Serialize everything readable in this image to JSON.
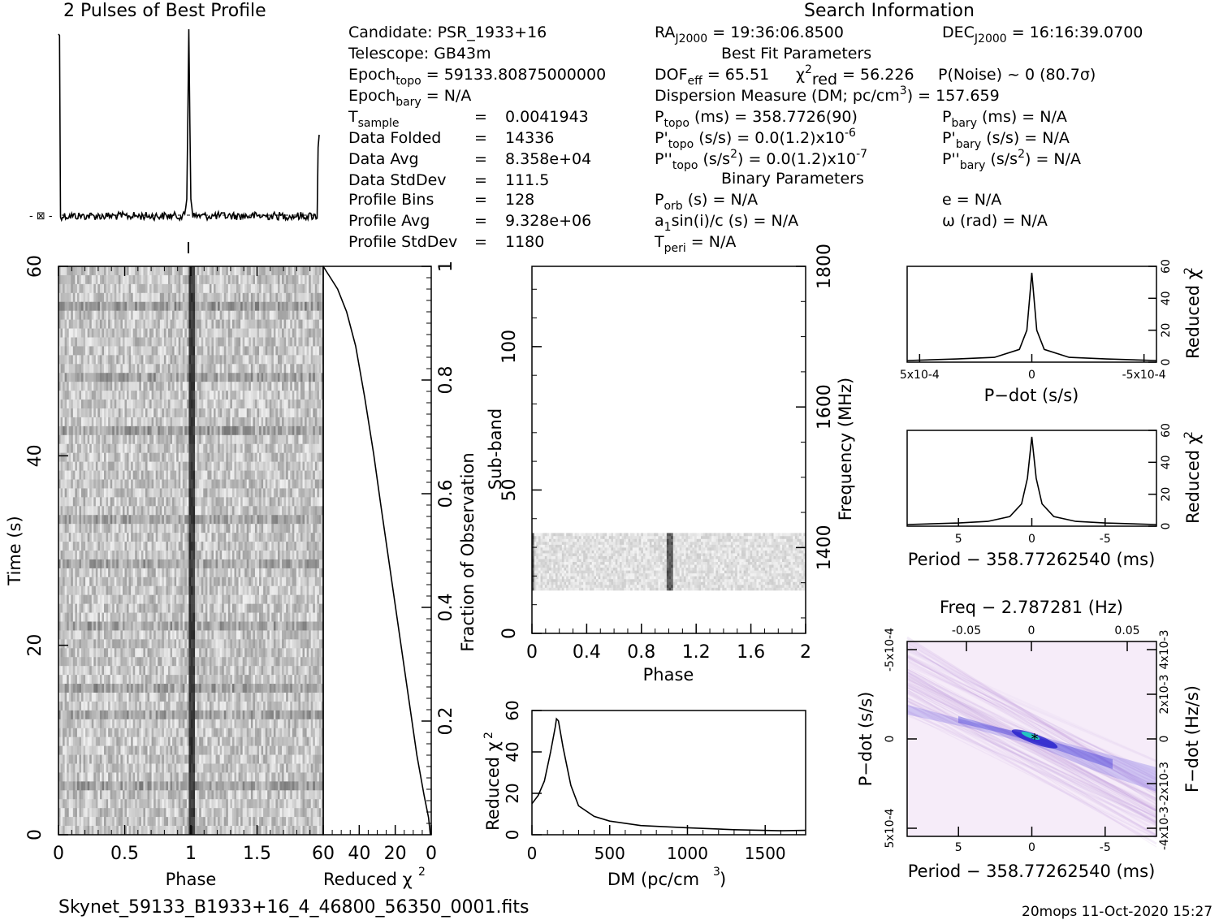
{
  "titles": {
    "profile": "2 Pulses of Best Profile",
    "search": "Search Information",
    "best_fit": "Best Fit Parameters",
    "binary": "Binary Parameters"
  },
  "info_left": [
    {
      "label": "Candidate:  PSR_1933+16"
    },
    {
      "label": "Telescope:  GB43m"
    },
    {
      "label": "Epoch",
      "sub": "topo",
      "rest": " = 59133.80875000000"
    },
    {
      "label": "Epoch",
      "sub": "bary",
      "rest": " = N/A"
    },
    {
      "label": "T",
      "sub": "sample",
      "eq": "=",
      "val": "0.0041943"
    },
    {
      "label": "Data Folded",
      "eq": "=",
      "val": "14336"
    },
    {
      "label": "Data Avg",
      "eq": "=",
      "val": "8.358e+04"
    },
    {
      "label": "Data StdDev",
      "eq": "=",
      "val": "111.5"
    },
    {
      "label": "Profile Bins",
      "eq": "=",
      "val": "128"
    },
    {
      "label": "Profile Avg",
      "eq": "=",
      "val": "9.328e+06"
    },
    {
      "label": "Profile StdDev",
      "eq": "=",
      "val": "1180"
    }
  ],
  "info_right": {
    "ra": {
      "label": "RA",
      "sub": "J2000",
      "rest": " = 19:36:06.8500"
    },
    "dec": {
      "label": "DEC",
      "sub": "J2000",
      "rest": " = 16:16:39.0700"
    },
    "dof": "DOF",
    "dof_sub": "eff",
    "dof_rest": " = 65.51",
    "chi": "χ",
    "chi_sup": "2",
    "chi_sub": "red",
    "chi_rest": " = 56.226",
    "noise": "P(Noise) ~ 0   (80.7σ)",
    "dm": "Dispersion Measure (DM; pc/cm",
    "dm_sup": "3",
    "dm_rest": ") = 157.659",
    "ptopo": {
      "label": "P",
      "sub": "topo",
      "rest": " (ms) =  358.7726(90)"
    },
    "pbary": {
      "label": "P",
      "sub": "bary",
      "rest": " (ms) = N/A"
    },
    "pdtopo": {
      "label": "P'",
      "sub": "topo",
      "rest": " (s/s) = 0.0(1.2)x10",
      "sup": "-6"
    },
    "pdbary": {
      "label": "P'",
      "sub": "bary",
      "rest": " (s/s) = N/A"
    },
    "pddtopo": {
      "label": "P''",
      "sub": "topo",
      "rest": " (s/s",
      "sup": "2",
      "rest2": ") = 0.0(1.2)x10",
      "sup2": "-7"
    },
    "pddbary": {
      "label": "P''",
      "sub": "bary",
      "rest": " (s/s",
      "sup": "2",
      "rest2": ") = N/A"
    },
    "porb": {
      "label": "P",
      "sub": "orb",
      "rest": " (s) = N/A"
    },
    "ecc": "e = N/A",
    "a1": {
      "label": "a",
      "sub": "1",
      "rest": "sin(i)/c (s) = N/A"
    },
    "omega": "ω (rad) = N/A",
    "tperi": {
      "label": "T",
      "sub": "peri",
      "rest": " = N/A"
    }
  },
  "footer": {
    "filename": "Skynet_59133_B1933+16_4_46800_56350_0001.fits",
    "stamp": "20mops 11-Oct-2020 15:27"
  },
  "chart_data": [
    {
      "type": "line",
      "title": "2 Pulses of Best Profile",
      "x": "Phase",
      "xlim": [
        0,
        2
      ],
      "peaks_at_phase": [
        0.0,
        1.0,
        2.0
      ],
      "note_values": "noise baseline with sharp pulse at phase 1 and profile wrap at 0 and 2"
    },
    {
      "type": "heatmap",
      "title": "",
      "xlabel": "Phase",
      "ylabel": "Time (s)",
      "xlim": [
        0,
        2
      ],
      "ylim": [
        0,
        60
      ],
      "xticks": [
        "0",
        "0.5",
        "1",
        "1.5"
      ],
      "yticks": [
        "0",
        "20",
        "40",
        "60"
      ]
    },
    {
      "type": "line",
      "xlabel": "Reduced χ2",
      "ylabel": "Fraction of Observation",
      "xlim": [
        60,
        0
      ],
      "ylim": [
        0,
        1
      ],
      "xticks": [
        "60",
        "40",
        "20",
        "0"
      ],
      "yticks": [
        "0.2",
        "0.4",
        "0.6",
        "0.8",
        "1"
      ],
      "points": [
        [
          0.5,
          0.0
        ],
        [
          1.5,
          0.03
        ],
        [
          4,
          0.07
        ],
        [
          8,
          0.14
        ],
        [
          13,
          0.25
        ],
        [
          18,
          0.36
        ],
        [
          23,
          0.47
        ],
        [
          28,
          0.58
        ],
        [
          32,
          0.67
        ],
        [
          37,
          0.77
        ],
        [
          42,
          0.86
        ],
        [
          47,
          0.92
        ],
        [
          52,
          0.96
        ],
        [
          56,
          0.98
        ],
        [
          58,
          0.99
        ],
        [
          60,
          1.0
        ]
      ]
    },
    {
      "type": "heatmap",
      "xlabel": "Phase",
      "ylabel": "Sub-band",
      "right_label": "Frequency (MHz)",
      "xlim": [
        0,
        2
      ],
      "ylim": [
        0,
        128
      ],
      "xticks": [
        "0",
        "0.4",
        "0.8",
        "1.2",
        "1.6",
        "2"
      ],
      "yticks": [
        "0",
        "50",
        "100"
      ],
      "right_ticks": [
        "1400",
        "1600",
        "1800"
      ],
      "data_band_subbands": [
        15,
        35
      ]
    },
    {
      "type": "line",
      "xlabel": "DM (pc/cm3)",
      "ylabel": "Reduced χ2",
      "xlim": [
        0,
        1760
      ],
      "ylim": [
        0,
        60
      ],
      "xticks": [
        "0",
        "500",
        "1000",
        "1500"
      ],
      "yticks": [
        "0",
        "20",
        "40",
        "60"
      ],
      "points": [
        [
          0,
          15
        ],
        [
          40,
          19
        ],
        [
          80,
          26
        ],
        [
          120,
          40
        ],
        [
          150,
          52
        ],
        [
          157.659,
          56.2
        ],
        [
          170,
          55
        ],
        [
          200,
          42
        ],
        [
          250,
          24
        ],
        [
          300,
          14
        ],
        [
          400,
          9
        ],
        [
          500,
          6.5
        ],
        [
          700,
          4.5
        ],
        [
          1000,
          3.2
        ],
        [
          1300,
          2.6
        ],
        [
          1600,
          2.2
        ],
        [
          1760,
          2.1
        ]
      ]
    },
    {
      "type": "line",
      "xlabel": "P-dot (s/s)",
      "ylabel": "Reduced χ2",
      "xlim": [
        0.0005,
        -0.0005
      ],
      "ylim": [
        0,
        60
      ],
      "xticks": [
        "5x10-4",
        "0",
        "-5x10-4"
      ],
      "yticks": [
        "0",
        "20",
        "40",
        "60"
      ],
      "points": [
        [
          0.0005,
          1
        ],
        [
          0.0003,
          2
        ],
        [
          0.00015,
          3
        ],
        [
          5e-05,
          8
        ],
        [
          2e-05,
          20
        ],
        [
          0,
          56
        ],
        [
          -2e-05,
          20
        ],
        [
          -5e-05,
          8
        ],
        [
          -0.00015,
          3
        ],
        [
          -0.0003,
          2
        ],
        [
          -0.0005,
          1
        ]
      ]
    },
    {
      "type": "line",
      "xlabel": "Period - 358.77262540 (ms)",
      "ylabel": "Reduced χ2",
      "xlim": [
        8.5,
        -8.5
      ],
      "ylim": [
        0,
        60
      ],
      "xticks": [
        "5",
        "0",
        "-5"
      ],
      "yticks": [
        "0",
        "20",
        "40",
        "60"
      ],
      "points": [
        [
          8.5,
          1
        ],
        [
          5,
          2
        ],
        [
          3,
          3
        ],
        [
          1.5,
          6
        ],
        [
          0.7,
          14
        ],
        [
          0.3,
          30
        ],
        [
          0,
          56
        ],
        [
          -0.3,
          30
        ],
        [
          -0.7,
          14
        ],
        [
          -1.5,
          6
        ],
        [
          -3,
          3
        ],
        [
          -5,
          2
        ],
        [
          -8.5,
          1
        ]
      ]
    },
    {
      "type": "heatmap",
      "title": "Freq - 2.787281 (Hz)",
      "xlabel": "Period - 358.77262540 (ms)",
      "ylabel": "P-dot (s/s)",
      "right_label": "F-dot (Hz/s)",
      "xlim": [
        8.5,
        -8.5
      ],
      "ylim": [
        0.0005,
        -0.0005
      ],
      "xticks": [
        "5",
        "0",
        "-5"
      ],
      "top_ticks": [
        "-0.05",
        "0",
        "0.05"
      ],
      "yticks": [
        "-5x10-4",
        "0",
        "5x10-4"
      ],
      "right_ticks": [
        "4x10-3",
        "2x10-3",
        "0",
        "-2x10-3",
        "-4x10-3"
      ]
    }
  ]
}
